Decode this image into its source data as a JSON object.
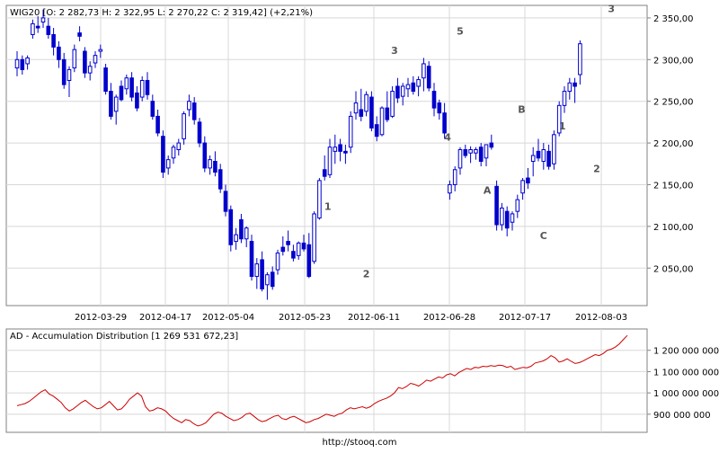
{
  "footer": "http://stooq.com",
  "chart_data": [
    {
      "type": "candlestick",
      "title": "WIG20 [O: 2 282,73  H: 2 322,95  L: 2 270,22  C: 2 319,42] (+2,21%)",
      "x_tick_labels": [
        "2012-03-29",
        "2012-04-17",
        "2012-05-04",
        "2012-05-23",
        "2012-06-11",
        "2012-06-28",
        "2012-07-17",
        "2012-08-03"
      ],
      "y_ticks": [
        2050,
        2100,
        2150,
        2200,
        2250,
        2300,
        2350
      ],
      "y_tick_labels": [
        "2 050,00",
        "2 100,00",
        "2 150,00",
        "2 200,00",
        "2 250,00",
        "2 300,00",
        "2 350,00"
      ],
      "ylim": [
        2005,
        2365
      ],
      "grid": true,
      "candles": [
        [
          2290,
          2310,
          2280,
          2300
        ],
        [
          2300,
          2305,
          2282,
          2288
        ],
        [
          2295,
          2305,
          2288,
          2302
        ],
        [
          2330,
          2348,
          2325,
          2343
        ],
        [
          2340,
          2352,
          2332,
          2338
        ],
        [
          2345,
          2360,
          2338,
          2350
        ],
        [
          2340,
          2350,
          2325,
          2330
        ],
        [
          2330,
          2338,
          2305,
          2315
        ],
        [
          2315,
          2322,
          2290,
          2300
        ],
        [
          2300,
          2308,
          2265,
          2270
        ],
        [
          2275,
          2292,
          2255,
          2288
        ],
        [
          2290,
          2318,
          2285,
          2312
        ],
        [
          2332,
          2340,
          2322,
          2328
        ],
        [
          2310,
          2315,
          2278,
          2284
        ],
        [
          2284,
          2298,
          2275,
          2292
        ],
        [
          2296,
          2310,
          2290,
          2305
        ],
        [
          2310,
          2318,
          2302,
          2312
        ],
        [
          2290,
          2295,
          2258,
          2262
        ],
        [
          2262,
          2272,
          2228,
          2232
        ],
        [
          2238,
          2258,
          2222,
          2255
        ],
        [
          2268,
          2275,
          2250,
          2252
        ],
        [
          2265,
          2282,
          2258,
          2278
        ],
        [
          2278,
          2285,
          2250,
          2255
        ],
        [
          2260,
          2268,
          2238,
          2242
        ],
        [
          2255,
          2280,
          2250,
          2275
        ],
        [
          2275,
          2285,
          2252,
          2258
        ],
        [
          2250,
          2258,
          2228,
          2232
        ],
        [
          2232,
          2240,
          2208,
          2212
        ],
        [
          2208,
          2215,
          2158,
          2165
        ],
        [
          2170,
          2185,
          2162,
          2180
        ],
        [
          2182,
          2198,
          2175,
          2195
        ],
        [
          2192,
          2205,
          2185,
          2200
        ],
        [
          2205,
          2238,
          2198,
          2235
        ],
        [
          2240,
          2258,
          2232,
          2250
        ],
        [
          2248,
          2255,
          2222,
          2228
        ],
        [
          2225,
          2230,
          2195,
          2200
        ],
        [
          2200,
          2208,
          2165,
          2170
        ],
        [
          2170,
          2185,
          2162,
          2180
        ],
        [
          2178,
          2190,
          2160,
          2165
        ],
        [
          2168,
          2175,
          2140,
          2145
        ],
        [
          2142,
          2150,
          2112,
          2118
        ],
        [
          2120,
          2125,
          2070,
          2078
        ],
        [
          2082,
          2098,
          2072,
          2090
        ],
        [
          2108,
          2115,
          2080,
          2085
        ],
        [
          2085,
          2100,
          2075,
          2098
        ],
        [
          2082,
          2090,
          2035,
          2040
        ],
        [
          2040,
          2062,
          2025,
          2055
        ],
        [
          2060,
          2070,
          2022,
          2025
        ],
        [
          2030,
          2045,
          2012,
          2042
        ],
        [
          2045,
          2052,
          2024,
          2028
        ],
        [
          2048,
          2072,
          2042,
          2068
        ],
        [
          2075,
          2088,
          2065,
          2070
        ],
        [
          2082,
          2095,
          2070,
          2078
        ],
        [
          2070,
          2078,
          2058,
          2062
        ],
        [
          2065,
          2082,
          2060,
          2080
        ],
        [
          2080,
          2090,
          2070,
          2073
        ],
        [
          2078,
          2092,
          2038,
          2040
        ],
        [
          2058,
          2118,
          2055,
          2115
        ],
        [
          2110,
          2158,
          2108,
          2155
        ],
        [
          2168,
          2185,
          2155,
          2160
        ],
        [
          2162,
          2205,
          2158,
          2195
        ],
        [
          2190,
          2210,
          2175,
          2195
        ],
        [
          2198,
          2205,
          2178,
          2190
        ],
        [
          2190,
          2198,
          2175,
          2188
        ],
        [
          2195,
          2238,
          2188,
          2232
        ],
        [
          2236,
          2262,
          2228,
          2248
        ],
        [
          2240,
          2265,
          2226,
          2232
        ],
        [
          2238,
          2262,
          2232,
          2258
        ],
        [
          2255,
          2262,
          2214,
          2218
        ],
        [
          2222,
          2232,
          2202,
          2208
        ],
        [
          2210,
          2244,
          2208,
          2242
        ],
        [
          2242,
          2262,
          2225,
          2228
        ],
        [
          2232,
          2268,
          2230,
          2262
        ],
        [
          2268,
          2278,
          2248,
          2254
        ],
        [
          2256,
          2272,
          2245,
          2268
        ],
        [
          2265,
          2278,
          2255,
          2270
        ],
        [
          2272,
          2280,
          2258,
          2262
        ],
        [
          2268,
          2280,
          2256,
          2276
        ],
        [
          2278,
          2302,
          2262,
          2295
        ],
        [
          2292,
          2298,
          2262,
          2266
        ],
        [
          2262,
          2272,
          2232,
          2242
        ],
        [
          2248,
          2252,
          2228,
          2236
        ],
        [
          2236,
          2248,
          2205,
          2212
        ],
        [
          2140,
          2155,
          2132,
          2150
        ],
        [
          2150,
          2172,
          2142,
          2168
        ],
        [
          2170,
          2195,
          2162,
          2192
        ],
        [
          2192,
          2198,
          2182,
          2185
        ],
        [
          2188,
          2196,
          2176,
          2192
        ],
        [
          2188,
          2195,
          2180,
          2192
        ],
        [
          2195,
          2200,
          2172,
          2178
        ],
        [
          2182,
          2198,
          2172,
          2198
        ],
        [
          2200,
          2210,
          2192,
          2195
        ],
        [
          2148,
          2155,
          2095,
          2102
        ],
        [
          2102,
          2128,
          2095,
          2122
        ],
        [
          2118,
          2124,
          2088,
          2098
        ],
        [
          2105,
          2118,
          2095,
          2115
        ],
        [
          2118,
          2138,
          2110,
          2132
        ],
        [
          2140,
          2158,
          2132,
          2155
        ],
        [
          2158,
          2170,
          2145,
          2152
        ],
        [
          2178,
          2195,
          2160,
          2185
        ],
        [
          2190,
          2205,
          2178,
          2182
        ],
        [
          2178,
          2200,
          2168,
          2192
        ],
        [
          2190,
          2198,
          2168,
          2172
        ],
        [
          2175,
          2215,
          2168,
          2210
        ],
        [
          2212,
          2250,
          2208,
          2245
        ],
        [
          2245,
          2268,
          2236,
          2262
        ],
        [
          2262,
          2278,
          2252,
          2272
        ],
        [
          2272,
          2278,
          2248,
          2268
        ],
        [
          2282,
          2323,
          2270,
          2319
        ]
      ],
      "annotations": [
        {
          "label": "3",
          "index": 36.2,
          "value": 2307
        },
        {
          "label": "4",
          "index": 41.3,
          "value": 2203
        },
        {
          "label": "5",
          "index": 42.5,
          "value": 2330
        },
        {
          "label": "1",
          "index": 29.8,
          "value": 2120
        },
        {
          "label": "2",
          "index": 33.5,
          "value": 2039
        },
        {
          "label": "A",
          "index": 45.1,
          "value": 2139
        },
        {
          "label": "B",
          "index": 48.4,
          "value": 2236
        },
        {
          "label": "C",
          "index": 50.5,
          "value": 2085
        },
        {
          "label": "1",
          "index": 52.3,
          "value": 2216
        },
        {
          "label": "2",
          "index": 55.6,
          "value": 2165
        },
        {
          "label": "3",
          "index": 57.0,
          "value": 2357
        }
      ]
    },
    {
      "type": "line",
      "title": "AD - Accumulation Distribution [1 269 531 672,23]",
      "color": "#cc0000",
      "y_ticks": [
        900000000,
        1000000000,
        1100000000,
        1200000000
      ],
      "y_tick_labels": [
        "900 000 000",
        "1 000 000 000",
        "1 100 000 000",
        "1 200 000 000"
      ],
      "ylim": [
        815000000,
        1300000000
      ],
      "grid": true,
      "values": [
        940000000,
        945000000,
        950000000,
        960000000,
        975000000,
        990000000,
        1005000000,
        1015000000,
        995000000,
        985000000,
        970000000,
        955000000,
        930000000,
        915000000,
        925000000,
        940000000,
        955000000,
        965000000,
        950000000,
        935000000,
        925000000,
        930000000,
        945000000,
        960000000,
        940000000,
        920000000,
        925000000,
        945000000,
        970000000,
        985000000,
        1000000000,
        985000000,
        935000000,
        915000000,
        920000000,
        930000000,
        925000000,
        915000000,
        895000000,
        880000000,
        870000000,
        860000000,
        875000000,
        870000000,
        855000000,
        845000000,
        850000000,
        860000000,
        880000000,
        900000000,
        910000000,
        905000000,
        890000000,
        880000000,
        870000000,
        875000000,
        885000000,
        900000000,
        905000000,
        890000000,
        875000000,
        865000000,
        870000000,
        880000000,
        890000000,
        895000000,
        880000000,
        875000000,
        885000000,
        890000000,
        880000000,
        870000000,
        860000000,
        865000000,
        875000000,
        880000000,
        890000000,
        900000000,
        895000000,
        890000000,
        900000000,
        905000000,
        920000000,
        930000000,
        925000000,
        930000000,
        935000000,
        928000000,
        935000000,
        950000000,
        960000000,
        968000000,
        975000000,
        985000000,
        1000000000,
        1025000000,
        1020000000,
        1030000000,
        1045000000,
        1040000000,
        1032000000,
        1045000000,
        1060000000,
        1055000000,
        1065000000,
        1075000000,
        1070000000,
        1085000000,
        1090000000,
        1080000000,
        1095000000,
        1105000000,
        1115000000,
        1110000000,
        1120000000,
        1118000000,
        1125000000,
        1123000000,
        1128000000,
        1125000000,
        1130000000,
        1128000000,
        1120000000,
        1125000000,
        1110000000,
        1115000000,
        1120000000,
        1118000000,
        1125000000,
        1140000000,
        1145000000,
        1150000000,
        1160000000,
        1175000000,
        1165000000,
        1145000000,
        1150000000,
        1160000000,
        1148000000,
        1138000000,
        1142000000,
        1150000000,
        1160000000,
        1170000000,
        1180000000,
        1175000000,
        1185000000,
        1200000000,
        1205000000,
        1215000000,
        1230000000,
        1250000000,
        1269531672
      ]
    }
  ]
}
